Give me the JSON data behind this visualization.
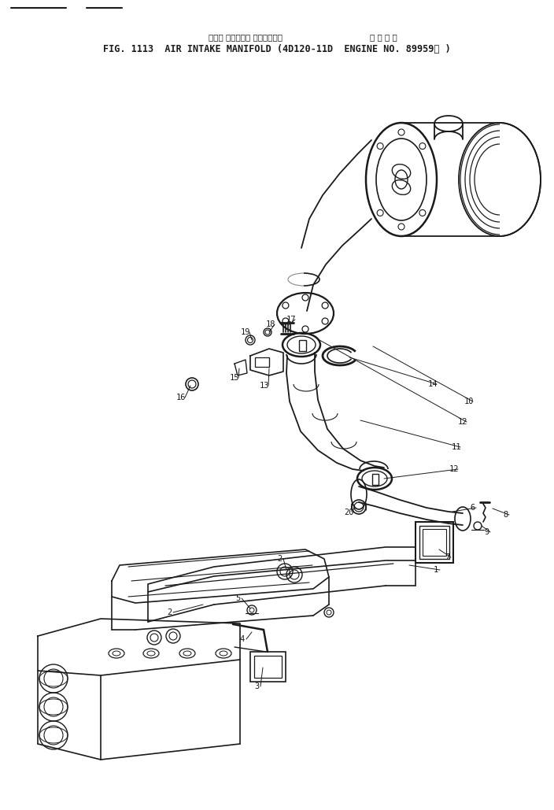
{
  "bg_color": "#ffffff",
  "line_color": "#1a1a1a",
  "fig_width": 7.04,
  "fig_height": 10.29,
  "dpi": 100,
  "title_line1_jp": "エアー インテーク マニホールド",
  "title_line1_jp2": "適 用 号 機",
  "title_line2": "FIG. 1113  AIR INTAKE MANIFOLD (4D120-11D  ENGINE NO. 89959－ )",
  "header_lines": [
    [
      0.02,
      0.12,
      0.972
    ],
    [
      0.155,
      0.205,
      0.972
    ]
  ]
}
